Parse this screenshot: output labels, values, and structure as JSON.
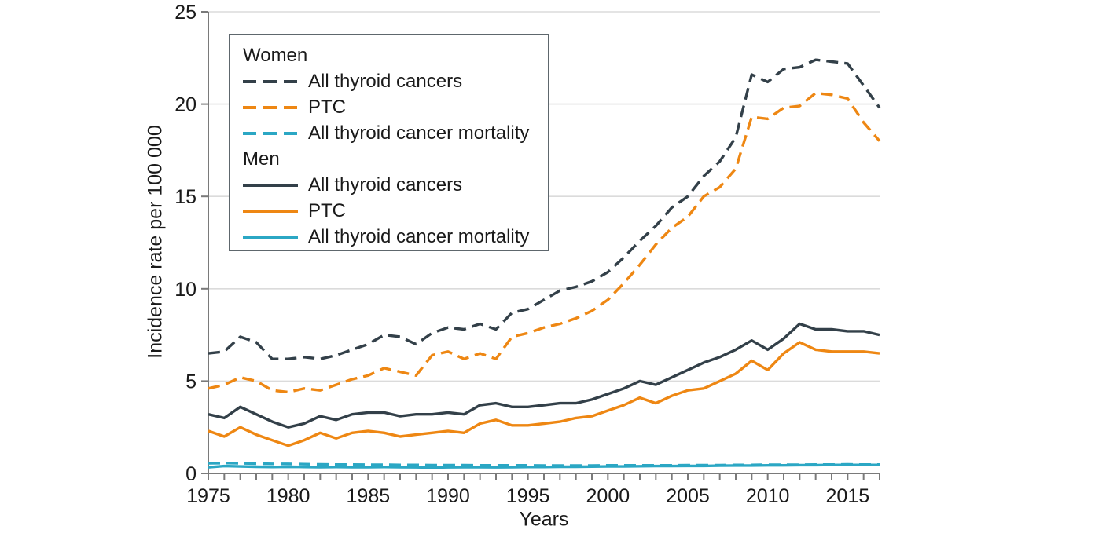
{
  "chart_data": {
    "type": "line",
    "title": "",
    "xlabel": "Years",
    "ylabel": "Incidence rate per 100 000",
    "x_range": [
      1975,
      2017
    ],
    "ylim": [
      0,
      25
    ],
    "yticks": [
      0,
      5,
      10,
      15,
      20,
      25
    ],
    "xticks": [
      1975,
      1980,
      1985,
      1990,
      1995,
      2000,
      2005,
      2010,
      2015
    ],
    "grid": "horizontal",
    "legend_position": "top-left",
    "colors": {
      "dark": "#334049",
      "orange": "#EE8713",
      "teal": "#2BA7C4",
      "grid": "#DBDBDB",
      "axis": "#7A7A7A",
      "text": "#1A1A1A"
    },
    "legend": {
      "women": "Women",
      "men": "Men"
    },
    "x": [
      1975,
      1976,
      1977,
      1978,
      1979,
      1980,
      1981,
      1982,
      1983,
      1984,
      1985,
      1986,
      1987,
      1988,
      1989,
      1990,
      1991,
      1992,
      1993,
      1994,
      1995,
      1996,
      1997,
      1998,
      1999,
      2000,
      2001,
      2002,
      2003,
      2004,
      2005,
      2006,
      2007,
      2008,
      2009,
      2010,
      2011,
      2012,
      2013,
      2014,
      2015,
      2016,
      2017
    ],
    "series": [
      {
        "name": "Women - All thyroid cancers",
        "group": "Women",
        "label": "All thyroid cancers",
        "color": "dark",
        "dashed": true,
        "values": [
          6.5,
          6.6,
          7.4,
          7.1,
          6.2,
          6.2,
          6.3,
          6.2,
          6.4,
          6.7,
          7.0,
          7.5,
          7.4,
          7.0,
          7.6,
          7.9,
          7.8,
          8.1,
          7.8,
          8.7,
          8.9,
          9.4,
          9.9,
          10.1,
          10.4,
          10.9,
          11.7,
          12.6,
          13.4,
          14.4,
          15.0,
          16.1,
          16.9,
          18.2,
          21.6,
          21.2,
          21.9,
          22.0,
          22.4,
          22.3,
          22.2,
          21.0,
          19.8
        ]
      },
      {
        "name": "Women - PTC",
        "group": "Women",
        "label": "PTC",
        "color": "orange",
        "dashed": true,
        "values": [
          4.6,
          4.8,
          5.2,
          5.0,
          4.5,
          4.4,
          4.6,
          4.5,
          4.8,
          5.1,
          5.3,
          5.7,
          5.5,
          5.3,
          6.4,
          6.6,
          6.2,
          6.5,
          6.2,
          7.4,
          7.6,
          7.9,
          8.1,
          8.4,
          8.8,
          9.4,
          10.3,
          11.3,
          12.4,
          13.3,
          13.9,
          15.0,
          15.5,
          16.5,
          19.3,
          19.2,
          19.8,
          19.9,
          20.6,
          20.5,
          20.3,
          19.0,
          18.0
        ]
      },
      {
        "name": "Women - All thyroid cancer mortality",
        "group": "Women",
        "label": "All thyroid cancer mortality",
        "color": "teal",
        "dashed": true,
        "values": [
          0.55,
          0.56,
          0.55,
          0.53,
          0.52,
          0.52,
          0.5,
          0.49,
          0.48,
          0.48,
          0.47,
          0.47,
          0.46,
          0.46,
          0.45,
          0.45,
          0.45,
          0.44,
          0.44,
          0.44,
          0.44,
          0.43,
          0.43,
          0.43,
          0.43,
          0.44,
          0.44,
          0.44,
          0.44,
          0.44,
          0.45,
          0.45,
          0.45,
          0.46,
          0.46,
          0.47,
          0.47,
          0.47,
          0.48,
          0.48,
          0.49,
          0.48,
          0.48
        ]
      },
      {
        "name": "Men - All thyroid cancers",
        "group": "Men",
        "label": "All thyroid cancers",
        "color": "dark",
        "dashed": false,
        "values": [
          3.2,
          3.0,
          3.6,
          3.2,
          2.8,
          2.5,
          2.7,
          3.1,
          2.9,
          3.2,
          3.3,
          3.3,
          3.1,
          3.2,
          3.2,
          3.3,
          3.2,
          3.7,
          3.8,
          3.6,
          3.6,
          3.7,
          3.8,
          3.8,
          4.0,
          4.3,
          4.6,
          5.0,
          4.8,
          5.2,
          5.6,
          6.0,
          6.3,
          6.7,
          7.2,
          6.7,
          7.3,
          8.1,
          7.8,
          7.8,
          7.7,
          7.7,
          7.5
        ]
      },
      {
        "name": "Men - PTC",
        "group": "Men",
        "label": "PTC",
        "color": "orange",
        "dashed": false,
        "values": [
          2.3,
          2.0,
          2.5,
          2.1,
          1.8,
          1.5,
          1.8,
          2.2,
          1.9,
          2.2,
          2.3,
          2.2,
          2.0,
          2.1,
          2.2,
          2.3,
          2.2,
          2.7,
          2.9,
          2.6,
          2.6,
          2.7,
          2.8,
          3.0,
          3.1,
          3.4,
          3.7,
          4.1,
          3.8,
          4.2,
          4.5,
          4.6,
          5.0,
          5.4,
          6.1,
          5.6,
          6.5,
          7.1,
          6.7,
          6.6,
          6.6,
          6.6,
          6.5
        ]
      },
      {
        "name": "Men - All thyroid cancer mortality",
        "group": "Men",
        "label": "All thyroid cancer mortality",
        "color": "teal",
        "dashed": false,
        "values": [
          0.33,
          0.4,
          0.38,
          0.36,
          0.35,
          0.36,
          0.35,
          0.34,
          0.35,
          0.34,
          0.34,
          0.35,
          0.34,
          0.33,
          0.32,
          0.33,
          0.34,
          0.34,
          0.33,
          0.34,
          0.35,
          0.35,
          0.36,
          0.36,
          0.37,
          0.38,
          0.38,
          0.39,
          0.4,
          0.4,
          0.41,
          0.41,
          0.42,
          0.43,
          0.43,
          0.44,
          0.44,
          0.45,
          0.45,
          0.46,
          0.46,
          0.46,
          0.46
        ]
      }
    ]
  }
}
